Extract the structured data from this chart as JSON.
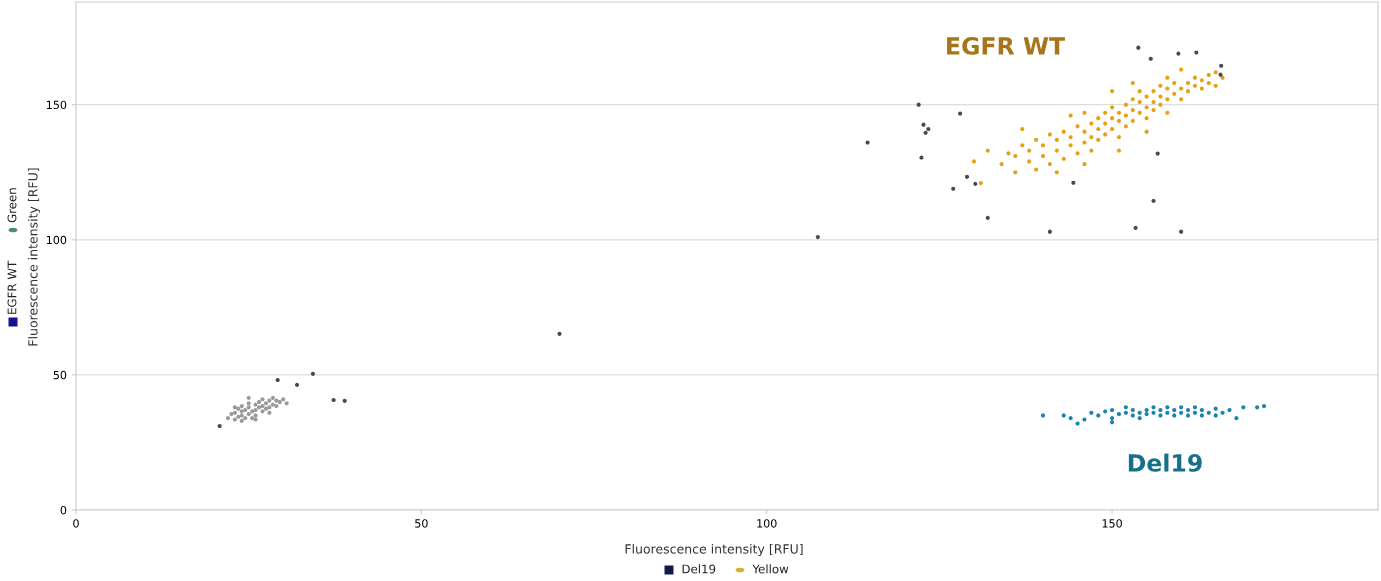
{
  "chart_data": {
    "type": "scatter",
    "xlabel": "Fluorescence intensity [RFU]",
    "ylabel": "Fluorescence intensity [RFU]",
    "xlim": [
      0,
      188.5
    ],
    "ylim": [
      0,
      188
    ],
    "xticks": [
      0,
      50,
      100,
      150
    ],
    "yticks": [
      0,
      50,
      100,
      150
    ],
    "grid": "y",
    "legend": false,
    "marker": "circle",
    "series": [
      {
        "color": "#9a9a9a",
        "x": [
          22,
          22.5,
          23,
          23,
          23.5,
          23.5,
          24,
          24,
          24,
          24.5,
          24.5,
          25,
          25,
          25,
          25.5,
          25.5,
          26,
          26,
          26,
          26.5,
          26.5,
          27,
          27,
          27,
          27.5,
          27.5,
          28,
          28,
          28.5,
          28.5,
          29,
          29,
          29.5,
          30,
          30.5,
          24,
          26,
          28,
          23,
          25
        ],
        "values": [
          34,
          35.5,
          33.5,
          36,
          34.5,
          37.5,
          35,
          36.5,
          38.5,
          34,
          37,
          35.5,
          38,
          39.5,
          36.5,
          34,
          37,
          39,
          35,
          38,
          40,
          36.5,
          38.5,
          41,
          37.5,
          39.5,
          38,
          40.5,
          39,
          41.5,
          38.5,
          40.5,
          40,
          41,
          39.5,
          33,
          33.5,
          36,
          38,
          41.5
        ]
      },
      {
        "color": "#e8a013",
        "x": [
          134,
          135,
          136,
          137,
          138,
          138,
          139,
          140,
          140,
          141,
          141,
          142,
          142,
          143,
          143,
          144,
          144,
          145,
          145,
          146,
          146,
          147,
          147,
          147,
          148,
          148,
          148,
          149,
          149,
          149,
          150,
          150,
          150,
          151,
          151,
          151,
          152,
          152,
          152,
          153,
          153,
          153,
          154,
          154,
          154,
          155,
          155,
          155,
          156,
          156,
          156,
          157,
          157,
          157,
          158,
          158,
          158,
          159,
          159,
          160,
          160,
          161,
          161,
          162,
          162,
          163,
          163,
          164,
          164,
          165,
          165,
          166,
          139,
          136,
          131,
          130,
          132,
          137,
          142,
          146,
          151,
          155,
          150,
          153,
          146,
          144,
          158,
          160
        ],
        "values": [
          128,
          132,
          131,
          135,
          129,
          133,
          137,
          131,
          135,
          128,
          139,
          133,
          137,
          130,
          140,
          135,
          138,
          132,
          142,
          136,
          140,
          138,
          143,
          133,
          141,
          145,
          137,
          143,
          147,
          139,
          141,
          145,
          149,
          144,
          147,
          138,
          146,
          150,
          142,
          148,
          152,
          144,
          147,
          151,
          155,
          149,
          153,
          145,
          151,
          155,
          148,
          153,
          157,
          150,
          152,
          156,
          160,
          154,
          158,
          156,
          152,
          158,
          155,
          157,
          160,
          156,
          159,
          158,
          161,
          157,
          162,
          160,
          126,
          125,
          121,
          129,
          133,
          141,
          125,
          128,
          133,
          140,
          155,
          158,
          147,
          146,
          147,
          163
        ]
      },
      {
        "color": "#1b84ad",
        "x": [
          143,
          144,
          146,
          147,
          148,
          149,
          150,
          150,
          151,
          152,
          152,
          153,
          153,
          154,
          154,
          155,
          155,
          156,
          156,
          157,
          157,
          158,
          158,
          159,
          159,
          160,
          160,
          161,
          161,
          162,
          162,
          163,
          163,
          164,
          165,
          165,
          166,
          167,
          168,
          169,
          171,
          140,
          172,
          145,
          150
        ],
        "values": [
          35,
          34,
          33.5,
          36,
          35,
          36.5,
          34,
          37,
          35.5,
          36,
          38,
          35,
          37,
          36,
          34,
          37,
          35.5,
          36,
          38,
          35,
          37,
          36,
          38,
          35,
          37,
          36,
          38,
          35,
          37,
          36,
          38,
          35,
          37,
          36,
          35,
          37.5,
          36,
          37,
          34,
          38,
          38,
          35,
          38.5,
          32,
          32.5
        ]
      },
      {
        "color": "#4a4a4a",
        "x": [
          153.8,
          122,
          114.6,
          122.7,
          123.4,
          123,
          122.4,
          128,
          127,
          129,
          130.2,
          132,
          141,
          153.4,
          160,
          156,
          156.6,
          144.4,
          107.4,
          155.6,
          159.6,
          162.2,
          165.8,
          165.7,
          70,
          34.3,
          37.3,
          38.9,
          20.8,
          32,
          29.2
        ],
        "values": [
          171.1,
          150,
          136,
          142.6,
          141,
          139.6,
          130.4,
          146.7,
          118.9,
          123.3,
          120.7,
          108.1,
          103,
          104.4,
          103,
          114.4,
          131.9,
          121.1,
          101,
          167,
          168.9,
          169.3,
          164.4,
          161.1,
          65.2,
          50.4,
          40.7,
          40.4,
          31.1,
          46.3,
          48.1
        ]
      }
    ],
    "annotations": [
      "EGFR WT",
      "Del19",
      "Del19",
      "Yellow",
      "EGFR WT",
      "Green"
    ]
  }
}
